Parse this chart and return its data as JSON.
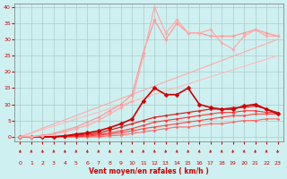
{
  "background_color": "#cff0f0",
  "grid_color": "#aacccc",
  "xlabel": "Vent moyen/en rafales ( km/h )",
  "xlabel_color": "#cc0000",
  "ylabel_color": "#cc0000",
  "xlim": [
    -0.5,
    23.5
  ],
  "ylim": [
    -1.5,
    41
  ],
  "yticks": [
    0,
    5,
    10,
    15,
    20,
    25,
    30,
    35,
    40
  ],
  "xticks": [
    0,
    1,
    2,
    3,
    4,
    5,
    6,
    7,
    8,
    9,
    10,
    11,
    12,
    13,
    14,
    15,
    16,
    17,
    18,
    19,
    20,
    21,
    22,
    23
  ],
  "lines": [
    {
      "x": [
        0,
        23
      ],
      "y": [
        0,
        30
      ],
      "color": "#ffaaaa",
      "lw": 0.8,
      "marker": null
    },
    {
      "x": [
        0,
        23
      ],
      "y": [
        0,
        25
      ],
      "color": "#ffbbbb",
      "lw": 0.8,
      "marker": null
    },
    {
      "x": [
        0,
        1,
        2,
        3,
        4,
        5,
        6,
        7,
        8,
        9,
        10,
        11,
        12,
        13,
        14,
        15,
        16,
        17,
        18,
        19,
        20,
        21,
        22,
        23
      ],
      "y": [
        0,
        0,
        0,
        0,
        0,
        0,
        0,
        0,
        0.3,
        0.5,
        1.0,
        1.5,
        2.0,
        2.5,
        3.0,
        3.0,
        3.5,
        4.0,
        4.0,
        4.5,
        5.0,
        5.0,
        5.5,
        5.5
      ],
      "color": "#ff6666",
      "lw": 0.8,
      "marker": "D",
      "markersize": 1.5
    },
    {
      "x": [
        0,
        1,
        2,
        3,
        4,
        5,
        6,
        7,
        8,
        9,
        10,
        11,
        12,
        13,
        14,
        15,
        16,
        17,
        18,
        19,
        20,
        21,
        22,
        23
      ],
      "y": [
        0,
        0,
        0,
        0,
        0,
        0,
        0.2,
        0.5,
        0.8,
        1.2,
        1.8,
        2.5,
        3.0,
        3.5,
        4.0,
        4.5,
        5.0,
        5.5,
        6.0,
        6.5,
        6.5,
        7.0,
        7.0,
        7.0
      ],
      "color": "#ff4444",
      "lw": 0.8,
      "marker": "D",
      "markersize": 1.5
    },
    {
      "x": [
        0,
        1,
        2,
        3,
        4,
        5,
        6,
        7,
        8,
        9,
        10,
        11,
        12,
        13,
        14,
        15,
        16,
        17,
        18,
        19,
        20,
        21,
        22,
        23
      ],
      "y": [
        0,
        0,
        0,
        0,
        0,
        0.2,
        0.5,
        0.8,
        1.2,
        1.8,
        2.5,
        3.5,
        4.5,
        5.0,
        5.5,
        6.0,
        6.5,
        7.0,
        7.5,
        7.5,
        8.0,
        8.0,
        7.5,
        7.5
      ],
      "color": "#ff3333",
      "lw": 0.8,
      "marker": "D",
      "markersize": 1.5
    },
    {
      "x": [
        0,
        1,
        2,
        3,
        4,
        5,
        6,
        7,
        8,
        9,
        10,
        11,
        12,
        13,
        14,
        15,
        16,
        17,
        18,
        19,
        20,
        21,
        22,
        23
      ],
      "y": [
        0,
        0,
        0,
        0,
        0.2,
        0.5,
        0.8,
        1.2,
        2.0,
        3.0,
        4.0,
        5.0,
        6.0,
        6.5,
        7.0,
        7.5,
        8.0,
        8.5,
        8.5,
        9.0,
        9.0,
        9.5,
        8.5,
        7.5
      ],
      "color": "#dd2222",
      "lw": 0.9,
      "marker": "D",
      "markersize": 1.5
    },
    {
      "x": [
        0,
        1,
        2,
        3,
        4,
        5,
        6,
        7,
        8,
        9,
        10,
        11,
        12,
        13,
        14,
        15,
        16,
        17,
        18,
        19,
        20,
        21,
        22,
        23
      ],
      "y": [
        0,
        0,
        0,
        0,
        0.3,
        0.8,
        1.2,
        1.8,
        2.8,
        4.0,
        5.5,
        11,
        15,
        13,
        13,
        15,
        10,
        9.0,
        8.5,
        8.5,
        9.5,
        10,
        8.5,
        7.0
      ],
      "color": "#cc0000",
      "lw": 1.2,
      "marker": "D",
      "markersize": 2.5
    },
    {
      "x": [
        0,
        1,
        2,
        3,
        4,
        5,
        6,
        7,
        8,
        9,
        10,
        11,
        12,
        13,
        14,
        15,
        16,
        17,
        18,
        19,
        20,
        21,
        22,
        23
      ],
      "y": [
        0,
        0,
        0.5,
        1.0,
        2.0,
        3.0,
        4.5,
        6.0,
        8.0,
        10,
        13,
        26,
        36,
        30,
        35,
        32,
        32,
        31,
        31,
        31,
        32,
        33,
        32,
        31
      ],
      "color": "#ff9999",
      "lw": 0.9,
      "marker": "D",
      "markersize": 1.8
    },
    {
      "x": [
        0,
        1,
        2,
        3,
        4,
        5,
        6,
        7,
        8,
        9,
        10,
        11,
        12,
        13,
        14,
        15,
        16,
        17,
        18,
        19,
        20,
        21,
        22,
        23
      ],
      "y": [
        0,
        0,
        0.3,
        0.8,
        1.5,
        2.5,
        3.5,
        5.0,
        7.0,
        9.0,
        11,
        25,
        40,
        32,
        36,
        32,
        32,
        33,
        29,
        27,
        31,
        33,
        31,
        31
      ],
      "color": "#ffaaaa",
      "lw": 0.9,
      "marker": "D",
      "markersize": 1.8
    }
  ],
  "wind_arrows": [
    0,
    1,
    2,
    3,
    4,
    5,
    6,
    7,
    8,
    9,
    10,
    11,
    12,
    13,
    14,
    15,
    16,
    17,
    18,
    19,
    20,
    21,
    22,
    23
  ],
  "arrow_color": "#cc0000"
}
